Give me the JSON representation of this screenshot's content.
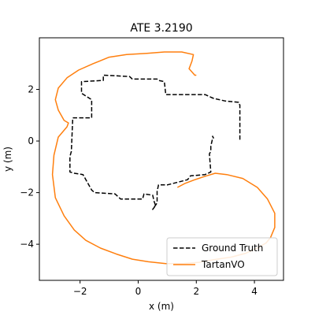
{
  "chart_data": {
    "type": "line",
    "title": "ATE 3.2190",
    "xlabel": "x (m)",
    "ylabel": "y (m)",
    "xlim": [
      -3.4,
      5.0
    ],
    "ylim": [
      -5.4,
      4.0
    ],
    "xticks": [
      -2,
      0,
      2,
      4
    ],
    "yticks": [
      -4,
      -2,
      0,
      2
    ],
    "grid": false,
    "legend_position": "lower-right",
    "series": [
      {
        "name": "Ground Truth",
        "style": "dashed",
        "color": "#000000",
        "x": [
          3.5,
          3.5,
          3.45,
          3.45,
          3.0,
          2.6,
          2.5,
          2.3,
          0.95,
          0.9,
          0.7,
          0.65,
          -0.2,
          -0.3,
          -1.2,
          -1.2,
          -1.95,
          -1.95,
          -1.6,
          -1.6,
          -2.25,
          -2.3,
          -2.35,
          -2.35,
          -2.2,
          -1.9,
          -1.6,
          -1.5,
          -0.8,
          -0.6,
          0.15,
          0.2,
          0.5,
          0.55,
          0.6,
          0.5,
          0.65,
          0.65,
          0.7,
          1.0,
          1.7,
          1.8,
          2.3,
          2.5,
          2.45,
          2.5,
          2.5,
          2.55,
          2.6,
          2.55
        ],
        "y": [
          0.05,
          1.4,
          1.45,
          1.5,
          1.55,
          1.65,
          1.7,
          1.8,
          1.8,
          2.3,
          2.35,
          2.4,
          2.4,
          2.5,
          2.55,
          2.35,
          2.3,
          1.85,
          1.6,
          0.9,
          0.9,
          -0.4,
          -0.6,
          -1.2,
          -1.25,
          -1.3,
          -1.9,
          -2.0,
          -2.05,
          -2.25,
          -2.25,
          -2.05,
          -2.1,
          -2.35,
          -2.5,
          -2.65,
          -2.4,
          -1.95,
          -1.7,
          -1.7,
          -1.5,
          -1.35,
          -1.3,
          -1.2,
          -0.5,
          -0.4,
          -0.2,
          0.05,
          0.1,
          0.2
        ]
      },
      {
        "name": "TartanVO",
        "style": "solid",
        "color": "#ff7f0e",
        "x": [
          1.35,
          1.6,
          1.95,
          2.35,
          2.65,
          3.05,
          3.6,
          4.1,
          4.45,
          4.7,
          4.7,
          4.55,
          4.4,
          4.1,
          3.7,
          3.2,
          2.6,
          2.1,
          1.5,
          0.95,
          0.35,
          -0.2,
          -0.75,
          -1.3,
          -1.8,
          -2.2,
          -2.55,
          -2.85,
          -2.95,
          -2.9,
          -2.75,
          -2.6,
          -2.45,
          -2.4,
          -2.55,
          -2.75,
          -2.85,
          -2.75,
          -2.45,
          -2.05,
          -1.55,
          -1.0,
          -0.4,
          0.3,
          0.9,
          1.5,
          1.9,
          1.85,
          1.75,
          1.95,
          2.0
        ],
        "y": [
          -1.8,
          -1.65,
          -1.5,
          -1.35,
          -1.25,
          -1.3,
          -1.45,
          -1.8,
          -2.25,
          -2.8,
          -3.35,
          -3.75,
          -3.95,
          -4.15,
          -4.35,
          -4.5,
          -4.6,
          -4.7,
          -4.75,
          -4.75,
          -4.68,
          -4.58,
          -4.38,
          -4.15,
          -3.85,
          -3.45,
          -2.9,
          -2.2,
          -1.3,
          -0.55,
          0.15,
          0.35,
          0.55,
          0.7,
          0.8,
          1.2,
          1.6,
          2.05,
          2.45,
          2.75,
          3.0,
          3.25,
          3.35,
          3.4,
          3.45,
          3.45,
          3.35,
          3.1,
          2.8,
          2.55,
          2.55
        ]
      }
    ]
  }
}
